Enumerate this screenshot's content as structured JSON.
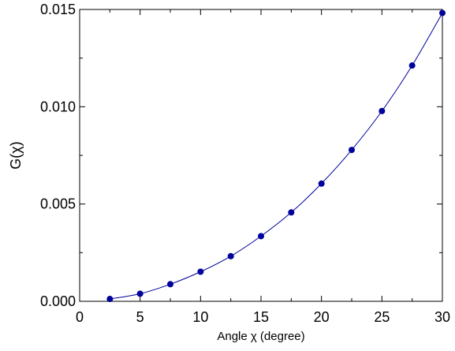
{
  "chart_data": {
    "type": "scatter",
    "title": "",
    "xlabel": "Angle χ (degree)",
    "ylabel": "G(χ)",
    "xlim": [
      0,
      30
    ],
    "ylim": [
      0,
      0.015
    ],
    "xticks": [
      0,
      5,
      10,
      15,
      20,
      25,
      30
    ],
    "xtick_labels": [
      "0",
      "5",
      "10",
      "15",
      "20",
      "25",
      "30"
    ],
    "yticks": [
      0,
      0.005,
      0.01,
      0.015
    ],
    "ytick_labels": [
      "0.000",
      "0.005",
      "0.010",
      "0.015"
    ],
    "grid": false,
    "legend": "none",
    "series": [
      {
        "style": "markers-with-smooth-line",
        "color": "#00009c",
        "x": [
          2.5,
          5,
          7.5,
          10,
          12.5,
          15,
          17.5,
          20,
          22.5,
          25,
          27.5,
          30
        ],
        "y": [
          0.00012,
          0.00039,
          0.00088,
          0.00152,
          0.00232,
          0.00335,
          0.00457,
          0.00605,
          0.00778,
          0.00978,
          0.01212,
          0.01482
        ]
      }
    ]
  }
}
